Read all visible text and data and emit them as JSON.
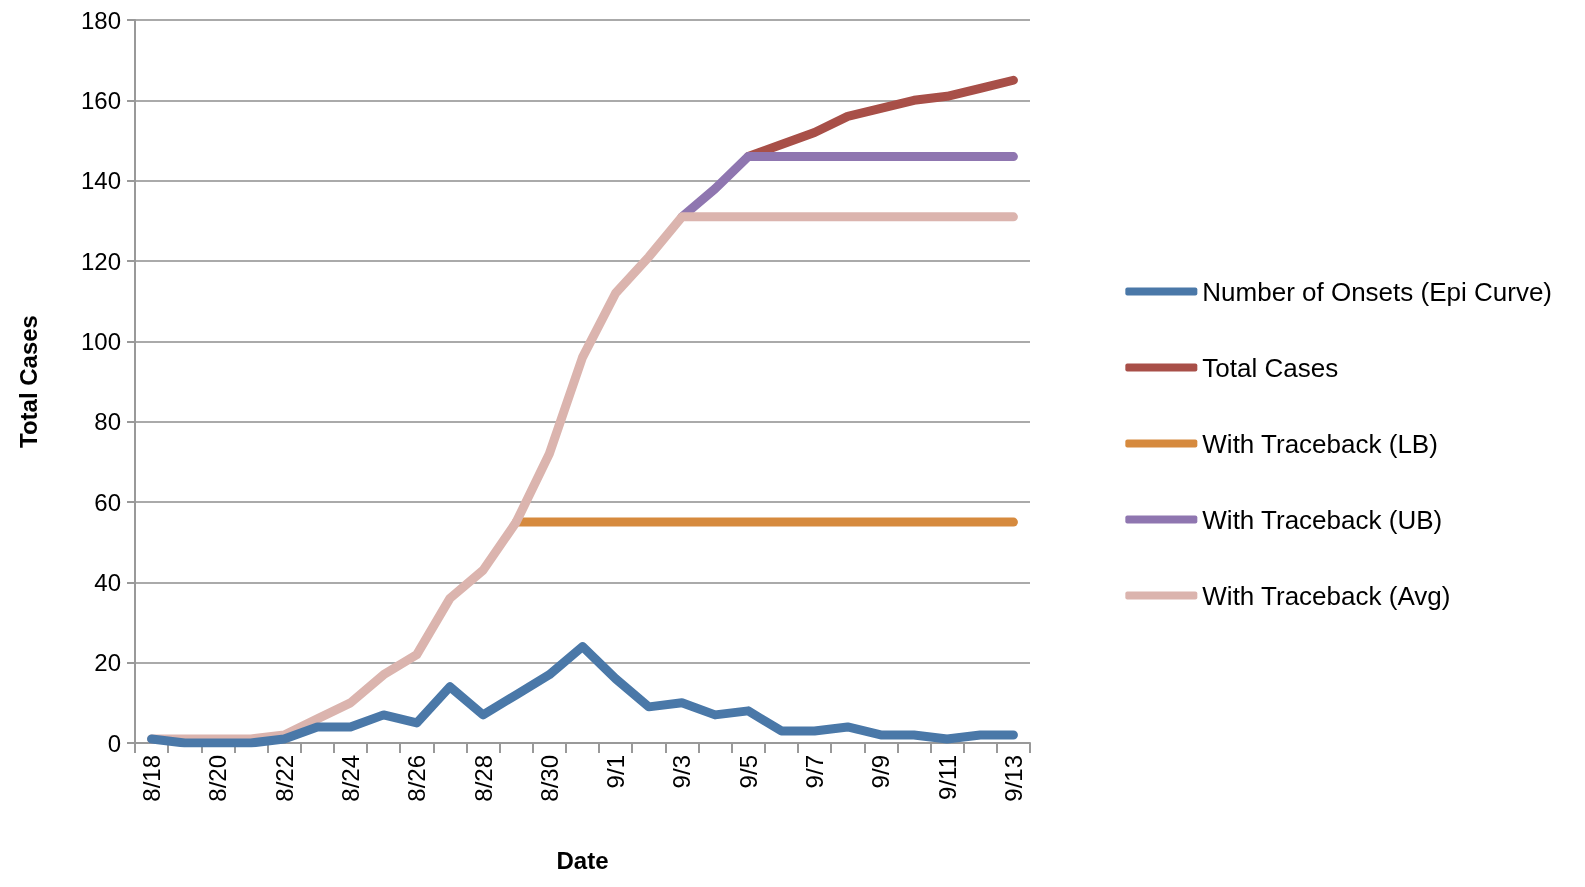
{
  "chart_data": {
    "type": "line",
    "xlabel": "Date",
    "ylabel": "Total Cases",
    "categories": [
      "8/18",
      null,
      "8/20",
      null,
      "8/22",
      null,
      "8/24",
      null,
      "8/26",
      null,
      "8/28",
      null,
      "8/30",
      null,
      "9/1",
      null,
      "9/3",
      null,
      "9/5",
      null,
      "9/7",
      null,
      "9/9",
      null,
      "9/11",
      null,
      "9/13"
    ],
    "series": [
      {
        "name": "Number of Onsets (Epi Curve)",
        "color": "#4a78a8",
        "values": [
          1,
          0,
          0,
          0,
          1,
          4,
          4,
          7,
          5,
          14,
          7,
          12,
          17,
          24,
          16,
          9,
          10,
          7,
          8,
          3,
          3,
          4,
          2,
          2,
          1,
          2,
          2
        ]
      },
      {
        "name": "Total Cases",
        "color": "#a84f48",
        "values": [
          null,
          null,
          null,
          null,
          null,
          null,
          null,
          null,
          null,
          null,
          null,
          null,
          null,
          null,
          null,
          null,
          null,
          null,
          146,
          149,
          152,
          156,
          158,
          160,
          161,
          163,
          165
        ]
      },
      {
        "name": "With Traceback (LB)",
        "color": "#d68a3e",
        "values": [
          null,
          null,
          null,
          null,
          null,
          null,
          null,
          null,
          null,
          null,
          null,
          55,
          55,
          55,
          55,
          55,
          55,
          55,
          55,
          55,
          55,
          55,
          55,
          55,
          55,
          55,
          55
        ]
      },
      {
        "name": "With Traceback (UB)",
        "color": "#8f76b0",
        "values": [
          null,
          null,
          null,
          null,
          null,
          null,
          null,
          null,
          null,
          null,
          null,
          null,
          null,
          null,
          null,
          null,
          131,
          138,
          146,
          146,
          146,
          146,
          146,
          146,
          146,
          146,
          146
        ]
      },
      {
        "name": "With Traceback (Avg)",
        "color": "#dbb4ae",
        "values": [
          1,
          1,
          1,
          1,
          2,
          6,
          10,
          17,
          22,
          36,
          43,
          55,
          72,
          96,
          112,
          121,
          131,
          131,
          131,
          131,
          131,
          131,
          131,
          131,
          131,
          131,
          131
        ]
      }
    ],
    "ylim": [
      0,
      180
    ],
    "yticks": [
      0,
      20,
      40,
      60,
      80,
      100,
      120,
      140,
      160,
      180
    ],
    "grid": "y",
    "legend": "right",
    "line_style": "solid"
  }
}
